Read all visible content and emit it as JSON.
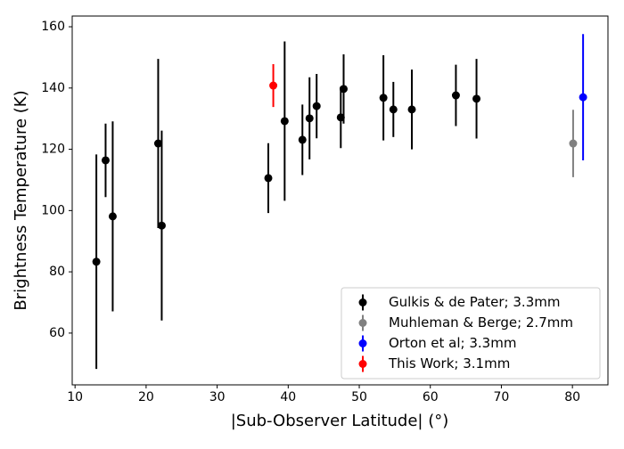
{
  "chart_data": {
    "type": "errorbar-scatter",
    "xlabel": "|Sub-Observer Latitude| (°)",
    "ylabel": "Brightness Temperature (K)",
    "xlim": [
      9.6,
      85
    ],
    "ylim": [
      43.1,
      163.5
    ],
    "xticks": [
      10,
      20,
      30,
      40,
      50,
      60,
      70,
      80
    ],
    "yticks": [
      60,
      80,
      100,
      120,
      140,
      160
    ],
    "legend": "lower right",
    "series": [
      {
        "name": "Gulkis & de Pater; 3.3mm",
        "color": "#000000",
        "x": [
          13.0,
          14.3,
          15.3,
          21.7,
          22.2,
          37.2,
          39.5,
          42.0,
          43.0,
          44.0,
          47.4,
          47.8,
          53.4,
          54.8,
          57.4,
          63.6,
          66.5
        ],
        "values": [
          83.3,
          116.4,
          98.1,
          121.9,
          95.1,
          110.6,
          129.2,
          123.1,
          130.1,
          134.1,
          130.4,
          139.7,
          136.8,
          133.0,
          133.0,
          137.6,
          136.5
        ],
        "errors": [
          35,
          12,
          31,
          27.6,
          31,
          11.4,
          26,
          11.5,
          13.4,
          10.5,
          10,
          11.3,
          13.9,
          9,
          13,
          10,
          13
        ]
      },
      {
        "name": "Muhleman & Berge; 2.7mm",
        "color": "#808080",
        "x": [
          80.1
        ],
        "values": [
          121.9
        ],
        "errors": [
          11
        ]
      },
      {
        "name": "Orton et al; 3.3mm",
        "color": "#0000ff",
        "x": [
          81.5
        ],
        "values": [
          137.0
        ],
        "errors": [
          20.6
        ]
      },
      {
        "name": "This Work; 3.1mm",
        "color": "#ff0000",
        "x": [
          37.9
        ],
        "values": [
          140.8
        ],
        "errors": [
          7
        ]
      }
    ]
  }
}
